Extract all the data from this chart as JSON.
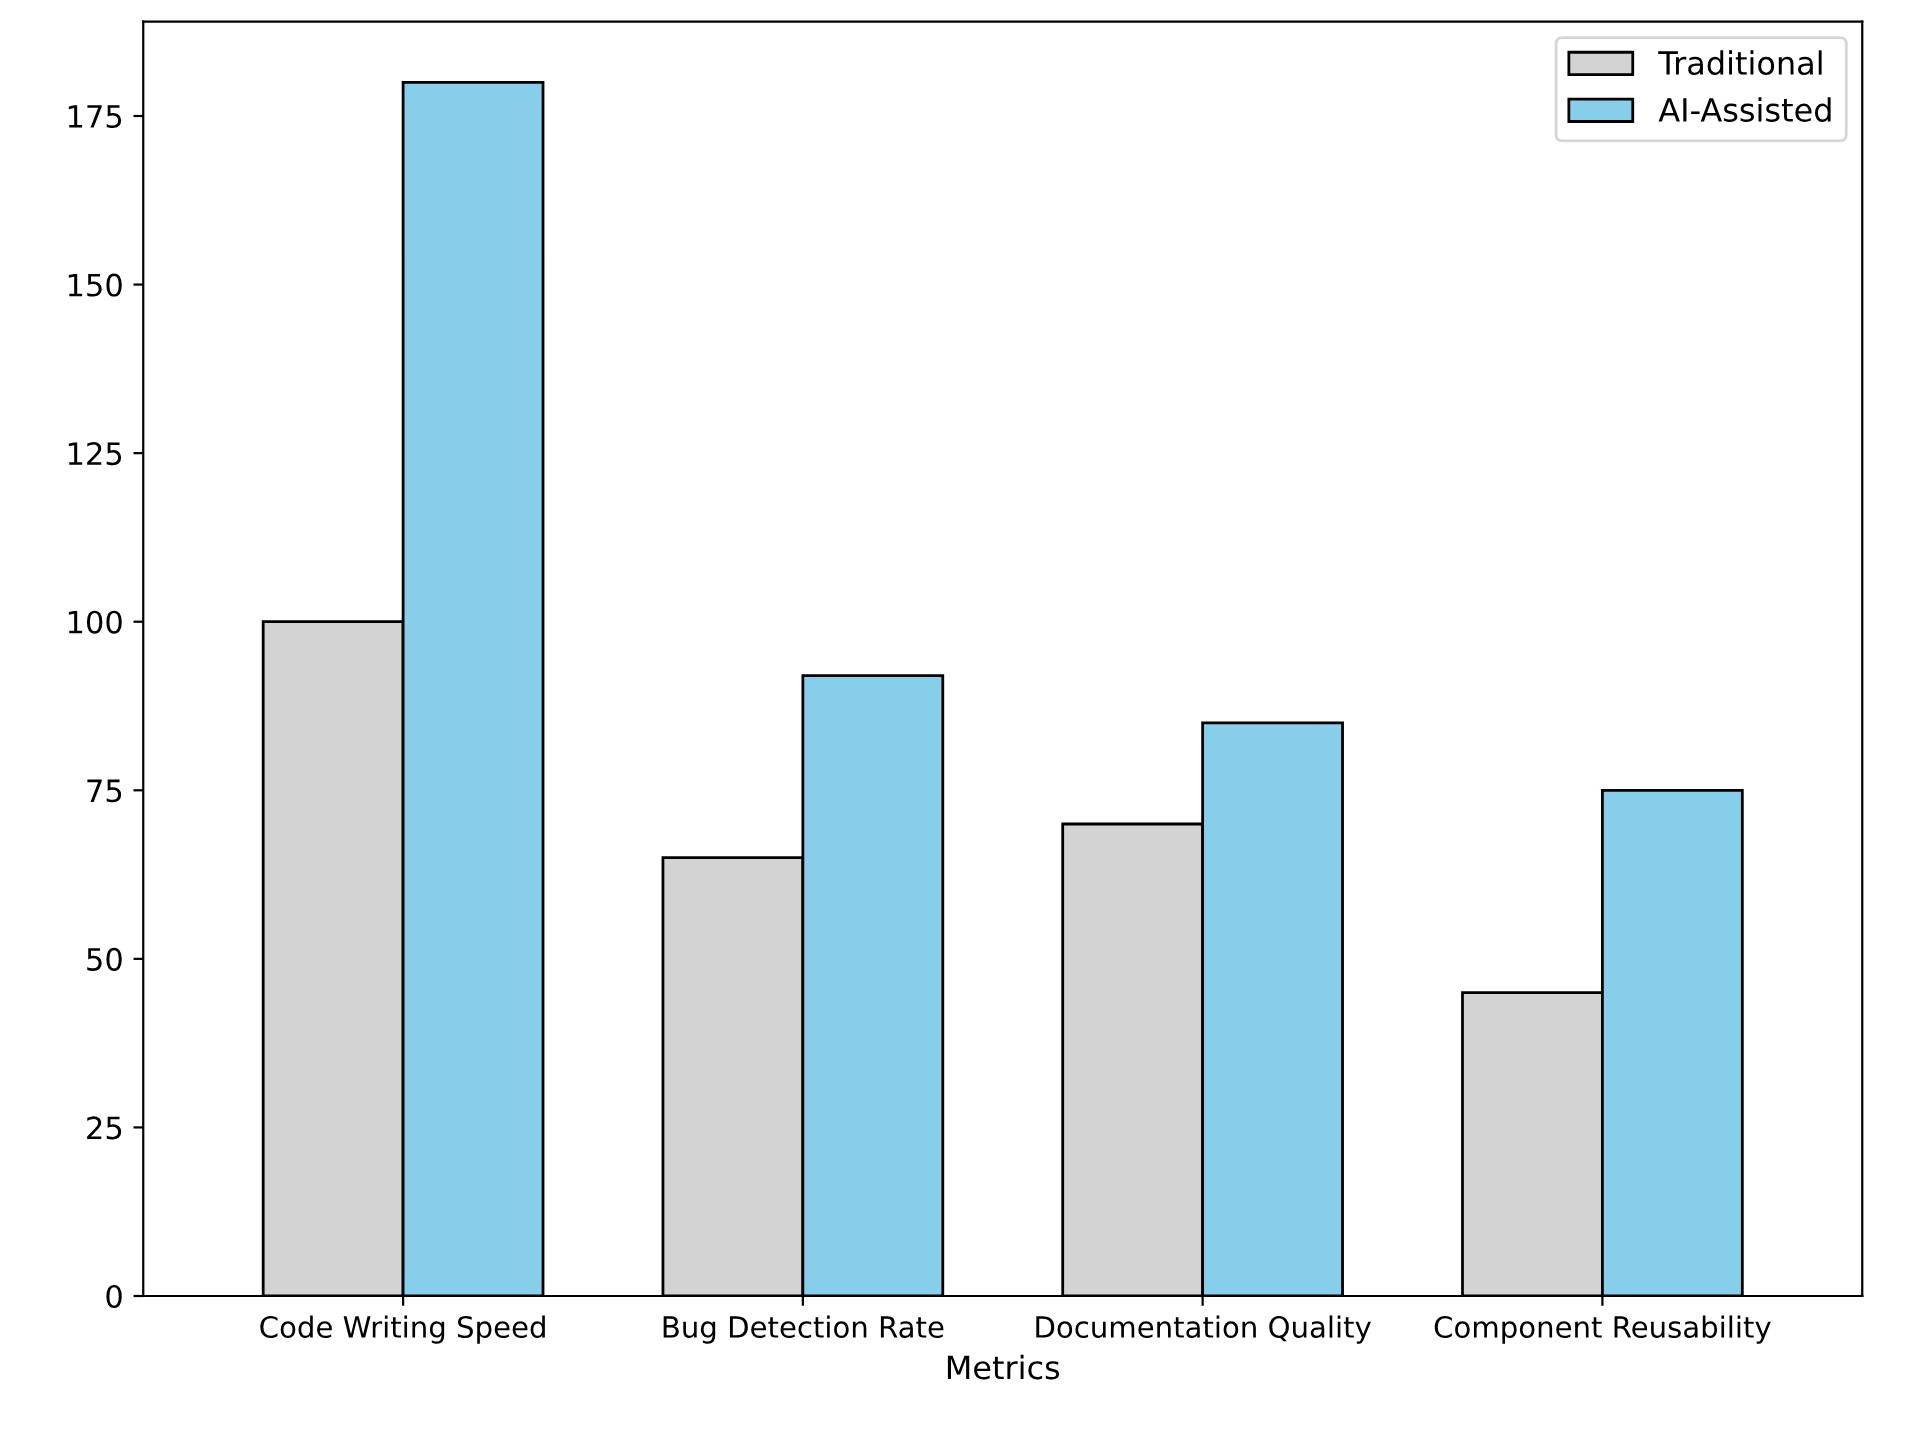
{
  "chart_data": {
    "type": "bar",
    "xlabel": "Metrics",
    "categories": [
      "Code Writing Speed",
      "Bug Detection Rate",
      "Documentation Quality",
      "Component Reusability"
    ],
    "series": [
      {
        "name": "Traditional",
        "color": "#d3d3d3",
        "values": [
          100,
          65,
          70,
          45
        ]
      },
      {
        "name": "AI-Assisted",
        "color": "#87ceeb",
        "values": [
          180,
          92,
          85,
          75
        ]
      }
    ],
    "ylim": [
      0,
      189
    ],
    "yticks": [
      0,
      25,
      50,
      75,
      100,
      125,
      150,
      175
    ],
    "grid": false,
    "legend": "top right"
  }
}
